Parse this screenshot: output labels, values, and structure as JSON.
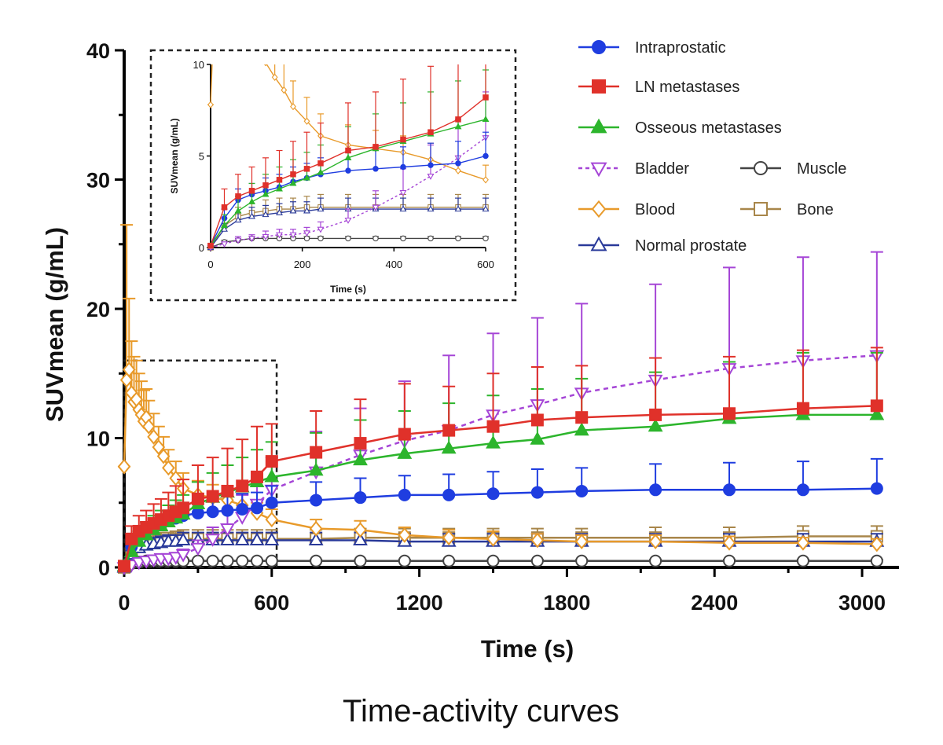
{
  "caption": "Time-activity curves",
  "colors": {
    "intraprostatic": "#1f3de0",
    "ln": "#e0312a",
    "osseous": "#2cb52c",
    "bladder": "#a545d6",
    "blood": "#e89a2a",
    "normal_prostate": "#2a3a9a",
    "muscle": "#444444",
    "bone": "#a8864a"
  },
  "chart_data": [
    {
      "type": "line",
      "xlabel": "Time (s)",
      "ylabel": "SUVmean (g/mL)",
      "xlim": [
        0,
        3150
      ],
      "ylim": [
        0,
        40
      ],
      "xticks": [
        "0",
        "600",
        "1200",
        "1800",
        "2400",
        "3000"
      ],
      "yticks": [
        "0",
        "10",
        "20",
        "30",
        "40"
      ],
      "grid": false,
      "legend_position": "top-right",
      "series": [
        {
          "name": "Intraprostatic",
          "key": "intraprostatic",
          "marker": "circle-filled",
          "dashed": false,
          "x": [
            0,
            30,
            60,
            90,
            120,
            150,
            180,
            210,
            240,
            300,
            360,
            420,
            480,
            540,
            600,
            780,
            960,
            1140,
            1320,
            1500,
            1680,
            1860,
            2160,
            2460,
            2760,
            3060
          ],
          "y": [
            0.1,
            1.6,
            2.6,
            2.9,
            3.1,
            3.3,
            3.6,
            3.8,
            4.0,
            4.2,
            4.3,
            4.4,
            4.5,
            4.6,
            5.0,
            5.2,
            5.4,
            5.6,
            5.6,
            5.7,
            5.8,
            5.9,
            6.0,
            6.0,
            6.0,
            6.1
          ],
          "err": [
            0.1,
            0.5,
            0.6,
            0.6,
            0.7,
            0.7,
            0.8,
            0.8,
            0.9,
            1.0,
            1.1,
            1.1,
            1.2,
            1.2,
            1.3,
            1.4,
            1.5,
            1.5,
            1.6,
            1.7,
            1.8,
            1.8,
            2.0,
            2.1,
            2.2,
            2.3
          ]
        },
        {
          "name": "LN metastases",
          "key": "ln",
          "marker": "square-filled",
          "dashed": false,
          "x": [
            0,
            30,
            60,
            90,
            120,
            150,
            180,
            210,
            240,
            300,
            360,
            420,
            480,
            540,
            600,
            780,
            960,
            1140,
            1320,
            1500,
            1680,
            1860,
            2160,
            2460,
            2760,
            3060
          ],
          "y": [
            0.1,
            2.2,
            2.8,
            3.1,
            3.4,
            3.7,
            4.0,
            4.3,
            4.6,
            5.3,
            5.5,
            5.9,
            6.3,
            7.0,
            8.2,
            8.9,
            9.6,
            10.3,
            10.6,
            10.9,
            11.4,
            11.6,
            11.8,
            11.9,
            12.3,
            12.5
          ],
          "err": [
            0.1,
            1.0,
            1.2,
            1.3,
            1.5,
            1.6,
            1.8,
            2.0,
            2.2,
            2.6,
            3.0,
            3.3,
            3.6,
            3.9,
            2.9,
            3.2,
            3.4,
            3.9,
            3.4,
            4.1,
            4.1,
            4.0,
            4.4,
            4.4,
            4.5,
            4.5
          ]
        },
        {
          "name": "Osseous metastases",
          "key": "osseous",
          "marker": "triangle-up-filled",
          "dashed": false,
          "x": [
            0,
            30,
            60,
            90,
            120,
            150,
            180,
            210,
            240,
            300,
            360,
            420,
            480,
            540,
            600,
            780,
            960,
            1140,
            1320,
            1500,
            1680,
            1860,
            2160,
            2460,
            2760,
            3060
          ],
          "y": [
            0.1,
            1.2,
            2.0,
            2.5,
            2.9,
            3.2,
            3.5,
            3.8,
            4.1,
            4.9,
            5.4,
            5.8,
            6.2,
            6.6,
            7.0,
            7.5,
            8.3,
            8.8,
            9.2,
            9.6,
            9.9,
            10.6,
            10.9,
            11.5,
            11.8,
            11.8
          ],
          "err": [
            0.1,
            0.6,
            0.8,
            1.0,
            1.1,
            1.2,
            1.3,
            1.4,
            1.5,
            1.7,
            1.9,
            2.1,
            2.3,
            2.5,
            2.7,
            2.9,
            3.1,
            3.3,
            3.5,
            3.7,
            3.9,
            4.0,
            4.2,
            4.4,
            4.8,
            4.8
          ]
        },
        {
          "name": "Bladder",
          "key": "bladder",
          "marker": "triangle-down-open",
          "dashed": true,
          "x": [
            0,
            30,
            60,
            90,
            120,
            150,
            180,
            210,
            240,
            300,
            360,
            420,
            480,
            540,
            600,
            780,
            960,
            1140,
            1320,
            1500,
            1680,
            1860,
            2160,
            2460,
            2760,
            3060
          ],
          "y": [
            0.0,
            0.2,
            0.4,
            0.5,
            0.6,
            0.7,
            0.7,
            0.8,
            1.0,
            1.5,
            2.2,
            3.0,
            3.9,
            4.9,
            6.0,
            7.4,
            8.7,
            9.8,
            10.6,
            11.8,
            12.6,
            13.5,
            14.5,
            15.4,
            16.0,
            16.4
          ],
          "err": [
            0.0,
            0.1,
            0.2,
            0.2,
            0.3,
            0.3,
            0.3,
            0.3,
            0.4,
            0.6,
            0.9,
            1.3,
            1.7,
            2.1,
            2.5,
            3.1,
            3.6,
            4.6,
            5.8,
            6.3,
            6.7,
            6.9,
            7.4,
            7.8,
            8.0,
            8.0
          ]
        },
        {
          "name": "Blood",
          "key": "blood",
          "marker": "diamond-open",
          "dashed": false,
          "x": [
            0,
            10,
            20,
            30,
            40,
            50,
            60,
            70,
            80,
            90,
            100,
            120,
            140,
            160,
            180,
            210,
            240,
            300,
            360,
            420,
            480,
            540,
            600,
            780,
            960,
            1140,
            1320,
            1500,
            1680,
            1860,
            2160,
            2460,
            2760,
            3060
          ],
          "y": [
            7.8,
            14.5,
            15.3,
            13.5,
            12.8,
            13.0,
            12.2,
            11.8,
            11.3,
            11.6,
            10.9,
            10.1,
            9.3,
            8.6,
            7.7,
            6.9,
            6.1,
            5.6,
            5.4,
            5.2,
            4.8,
            4.2,
            3.7,
            3.0,
            2.9,
            2.5,
            2.3,
            2.2,
            2.1,
            2.0,
            2.0,
            1.9,
            1.9,
            1.8
          ],
          "err": [
            0.0,
            12.0,
            5.5,
            4.0,
            3.5,
            3.0,
            2.8,
            2.6,
            2.4,
            2.2,
            2.0,
            1.8,
            1.6,
            1.5,
            1.4,
            1.3,
            1.2,
            1.1,
            1.0,
            0.9,
            0.9,
            0.8,
            0.8,
            0.7,
            0.7,
            0.6,
            0.6,
            0.6,
            0.5,
            0.5,
            0.5,
            0.5,
            0.4,
            0.4
          ]
        },
        {
          "name": "Normal prostate",
          "key": "normal_prostate",
          "marker": "triangle-up-open",
          "dashed": false,
          "x": [
            0,
            30,
            60,
            90,
            120,
            150,
            180,
            210,
            240,
            300,
            360,
            420,
            480,
            540,
            600,
            780,
            960,
            1140,
            1320,
            1500,
            1680,
            1860,
            2160,
            2460,
            2760,
            3060
          ],
          "y": [
            0.0,
            1.0,
            1.5,
            1.7,
            1.8,
            1.9,
            2.0,
            2.0,
            2.1,
            2.1,
            2.1,
            2.1,
            2.1,
            2.1,
            2.1,
            2.1,
            2.1,
            2.0,
            2.0,
            2.0,
            2.0,
            2.0,
            2.0,
            2.0,
            2.0,
            2.0
          ],
          "err": [
            0.0,
            0.3,
            0.4,
            0.5,
            0.5,
            0.5,
            0.5,
            0.5,
            0.6,
            0.6,
            0.6,
            0.6,
            0.6,
            0.6,
            0.6,
            0.6,
            0.6,
            0.6,
            0.6,
            0.6,
            0.6,
            0.6,
            0.6,
            0.6,
            0.6,
            0.6
          ]
        },
        {
          "name": "Muscle",
          "key": "muscle",
          "marker": "circle-open",
          "dashed": false,
          "x": [
            0,
            30,
            60,
            90,
            120,
            150,
            180,
            210,
            240,
            300,
            360,
            420,
            480,
            540,
            600,
            780,
            960,
            1140,
            1320,
            1500,
            1680,
            1860,
            2160,
            2460,
            2760,
            3060
          ],
          "y": [
            0.0,
            0.3,
            0.4,
            0.5,
            0.5,
            0.5,
            0.5,
            0.5,
            0.5,
            0.5,
            0.5,
            0.5,
            0.5,
            0.5,
            0.5,
            0.5,
            0.5,
            0.5,
            0.5,
            0.5,
            0.5,
            0.5,
            0.5,
            0.5,
            0.5,
            0.5
          ],
          "err": [
            0.0,
            0.1,
            0.1,
            0.1,
            0.1,
            0.1,
            0.1,
            0.1,
            0.1,
            0.1,
            0.1,
            0.1,
            0.1,
            0.1,
            0.1,
            0.1,
            0.1,
            0.1,
            0.1,
            0.1,
            0.1,
            0.1,
            0.1,
            0.1,
            0.1,
            0.1
          ]
        },
        {
          "name": "Bone",
          "key": "bone",
          "marker": "square-open",
          "dashed": false,
          "x": [
            0,
            30,
            60,
            90,
            120,
            150,
            180,
            210,
            240,
            300,
            360,
            420,
            480,
            540,
            600,
            780,
            960,
            1140,
            1320,
            1500,
            1680,
            1860,
            2160,
            2460,
            2760,
            3060
          ],
          "y": [
            0.0,
            1.2,
            1.7,
            1.9,
            2.0,
            2.1,
            2.1,
            2.2,
            2.2,
            2.2,
            2.2,
            2.2,
            2.2,
            2.2,
            2.2,
            2.2,
            2.3,
            2.3,
            2.3,
            2.3,
            2.3,
            2.3,
            2.3,
            2.3,
            2.4,
            2.4
          ],
          "err": [
            0.0,
            0.4,
            0.5,
            0.5,
            0.6,
            0.6,
            0.6,
            0.6,
            0.7,
            0.7,
            0.7,
            0.7,
            0.7,
            0.7,
            0.7,
            0.7,
            0.7,
            0.7,
            0.7,
            0.7,
            0.7,
            0.7,
            0.8,
            0.8,
            0.8,
            0.8
          ]
        }
      ]
    },
    {
      "type": "line",
      "role": "inset",
      "xlabel": "Time (s)",
      "ylabel": "SUVmean (g/mL)",
      "xlim": [
        0,
        600
      ],
      "ylim": [
        0,
        10
      ],
      "xticks": [
        "0",
        "200",
        "400",
        "600"
      ],
      "yticks": [
        "0",
        "5",
        "10"
      ],
      "grid": false,
      "note_series": "same series as main chart, restricted to 0–600 s"
    }
  ],
  "legend": [
    {
      "label": "Intraprostatic",
      "key": "intraprostatic",
      "marker": "circle-filled"
    },
    {
      "label": "LN metastases",
      "key": "ln",
      "marker": "square-filled"
    },
    {
      "label": "Osseous metastases",
      "key": "osseous",
      "marker": "triangle-up-filled"
    },
    {
      "label": "Bladder",
      "key": "bladder",
      "marker": "triangle-down-open",
      "dashed": true
    },
    {
      "label": "Muscle",
      "key": "muscle",
      "marker": "circle-open"
    },
    {
      "label": "Blood",
      "key": "blood",
      "marker": "diamond-open"
    },
    {
      "label": "Bone",
      "key": "bone",
      "marker": "square-open"
    },
    {
      "label": "Normal prostate",
      "key": "normal_prostate",
      "marker": "triangle-up-open"
    }
  ]
}
